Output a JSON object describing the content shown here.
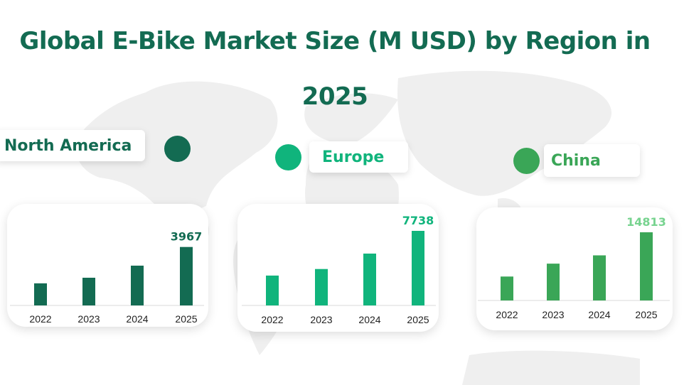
{
  "title_line1": "Global E-Bike Market Size (M USD) by Region in",
  "title_line2": "2025",
  "colors": {
    "title": "#136b52",
    "north_america": "#136b52",
    "europe": "#10b47c",
    "china": "#3aa657",
    "china_value": "#77d38f",
    "map": "#efefef"
  },
  "chart_data": [
    {
      "type": "bar",
      "region": "North America",
      "categories": [
        "2022",
        "2023",
        "2024",
        "2025"
      ],
      "values": [
        1500,
        1880,
        2700,
        3967
      ],
      "labeled_value": "3967",
      "ylim": [
        0,
        4000
      ]
    },
    {
      "type": "bar",
      "region": "Europe",
      "categories": [
        "2022",
        "2023",
        "2024",
        "2025"
      ],
      "values": [
        3100,
        3780,
        5380,
        7738
      ],
      "labeled_value": "7738",
      "ylim": [
        0,
        7738
      ]
    },
    {
      "type": "bar",
      "region": "China",
      "categories": [
        "2022",
        "2023",
        "2024",
        "2025"
      ],
      "values": [
        5200,
        8000,
        9800,
        14813
      ],
      "labeled_value": "14813",
      "ylim": [
        0,
        14813
      ]
    }
  ]
}
